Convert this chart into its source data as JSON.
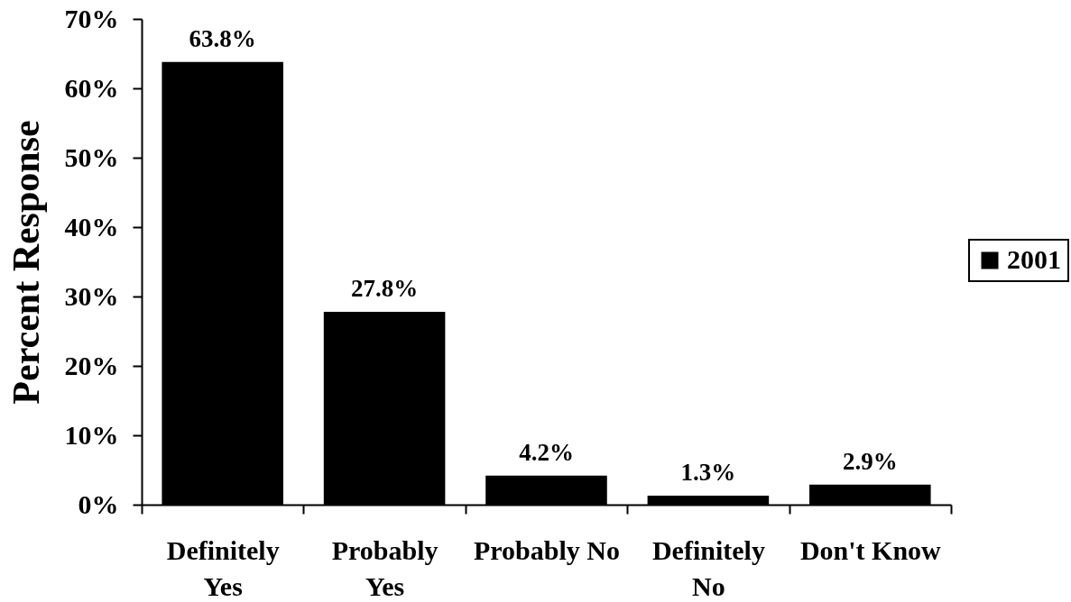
{
  "chart_data": {
    "type": "bar",
    "ylabel": "Percent Response",
    "categories": [
      "Definitely Yes",
      "Probably Yes",
      "Probably No",
      "Definitely No",
      "Don't Know"
    ],
    "series": [
      {
        "name": "2001",
        "color": "#000000",
        "values": [
          63.8,
          27.8,
          4.2,
          1.3,
          2.9
        ],
        "value_labels": [
          "63.8%",
          "27.8%",
          "4.2%",
          "1.3%",
          "2.9%"
        ]
      }
    ],
    "ylim": [
      0,
      70
    ],
    "yticks": [
      {
        "value": 0,
        "label": "0%"
      },
      {
        "value": 10,
        "label": "10%"
      },
      {
        "value": 20,
        "label": "20%"
      },
      {
        "value": 30,
        "label": "30%"
      },
      {
        "value": 40,
        "label": "40%"
      },
      {
        "value": 50,
        "label": "50%"
      },
      {
        "value": 60,
        "label": "60%"
      },
      {
        "value": 70,
        "label": "70%"
      }
    ],
    "legend": "right"
  }
}
